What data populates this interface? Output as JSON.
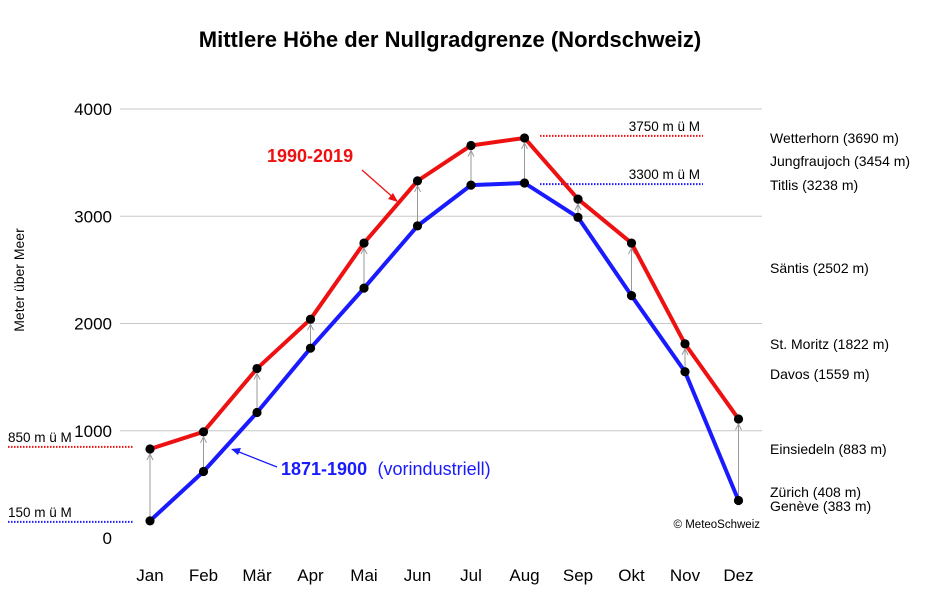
{
  "chart_data": {
    "type": "line",
    "title": "Mittlere Höhe der Nullgradgrenze (Nordschweiz)",
    "ylabel": "Meter über Meer",
    "ylim": [
      0,
      4000
    ],
    "yticks": [
      0,
      1000,
      2000,
      3000,
      4000
    ],
    "grid": "horizontal",
    "categories": [
      "Jan",
      "Feb",
      "Mär",
      "Apr",
      "Mai",
      "Jun",
      "Jul",
      "Aug",
      "Sep",
      "Okt",
      "Nov",
      "Dez"
    ],
    "series": [
      {
        "name": "1990-2019",
        "color": "#ee1111",
        "values": [
          830,
          990,
          1580,
          2040,
          2750,
          3330,
          3660,
          3730,
          3160,
          2750,
          1810,
          1110
        ]
      },
      {
        "name": "1871-1900",
        "color": "#1a1aff",
        "values": [
          160,
          620,
          1170,
          1770,
          2330,
          2910,
          3290,
          3310,
          2990,
          2260,
          1550,
          350
        ]
      }
    ],
    "series_label_1990": "1990-2019",
    "series_label_1871_year": "1871-1900",
    "series_label_1871_note": "(vorindustriell)",
    "reference_lines": [
      {
        "label": "3750 m ü M",
        "value": 3750,
        "color": "#ee1111"
      },
      {
        "label": "3300 m ü M",
        "value": 3300,
        "color": "#1a1aff"
      },
      {
        "label": "850 m ü M",
        "value": 850,
        "color": "#ee1111"
      },
      {
        "label": "150 m ü M",
        "value": 150,
        "color": "#1a1aff"
      }
    ],
    "stations": [
      {
        "label": "Wetterhorn (3690 m)",
        "value": 3690
      },
      {
        "label": "Jungfraujoch (3454 m)",
        "value": 3454
      },
      {
        "label": "Titlis (3238 m)",
        "value": 3238
      },
      {
        "label": "Säntis (2502 m)",
        "value": 2502
      },
      {
        "label": "St. Moritz (1822 m)",
        "value": 1822
      },
      {
        "label": "Davos (1559 m)",
        "value": 1559
      },
      {
        "label": "Einsiedeln (883 m)",
        "value": 883
      },
      {
        "label": "Zürich (408 m)",
        "value": 408
      },
      {
        "label": "Genève (383 m)",
        "value": 383
      }
    ],
    "source": "© MeteoSchweiz"
  }
}
